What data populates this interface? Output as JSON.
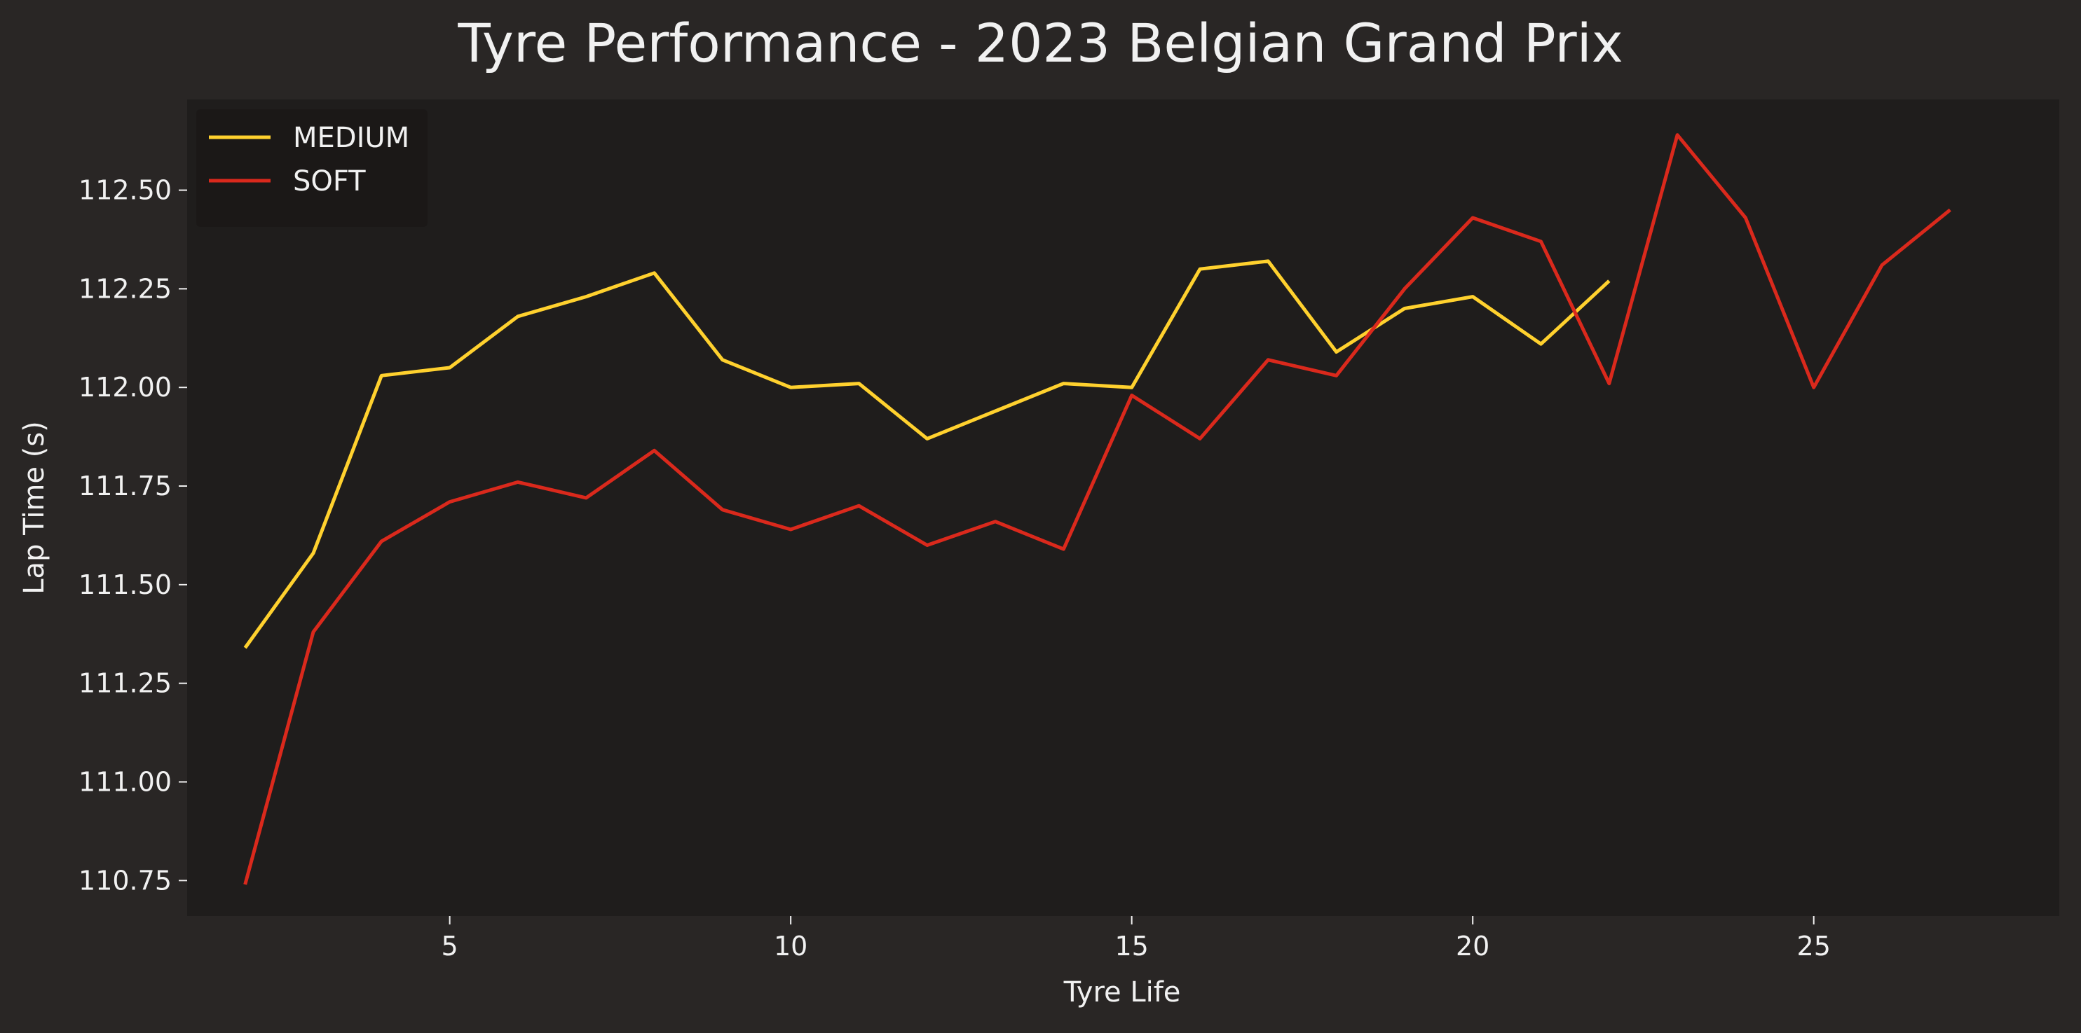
{
  "chart_data": {
    "type": "line",
    "title": "Tyre Performance - 2023 Belgian Grand Prix",
    "xlabel": "Tyre Life",
    "ylabel": "Lap Time (s)",
    "xlim": [
      1.15,
      28.6
    ],
    "ylim": [
      110.66,
      112.73
    ],
    "xticks": [
      5,
      10,
      15,
      20,
      25
    ],
    "xtick_labels": [
      "5",
      "10",
      "15",
      "20",
      "25"
    ],
    "yticks": [
      110.75,
      111.0,
      111.25,
      111.5,
      111.75,
      112.0,
      112.25,
      112.5
    ],
    "ytick_labels": [
      "110.75",
      "111.00",
      "111.25",
      "111.50",
      "111.75",
      "112.00",
      "112.25",
      "112.50"
    ],
    "grid": false,
    "legend_position": "top-left",
    "series": [
      {
        "name": "MEDIUM",
        "color": "#ffd12e",
        "x": [
          2,
          3,
          4,
          5,
          6,
          7,
          8,
          9,
          10,
          11,
          12,
          13,
          14,
          15,
          16,
          17,
          18,
          19,
          20,
          21,
          22
        ],
        "values": [
          111.34,
          111.58,
          112.03,
          112.05,
          112.18,
          112.23,
          112.29,
          112.07,
          112.0,
          112.01,
          111.87,
          111.94,
          112.01,
          112.0,
          112.3,
          112.32,
          112.09,
          112.2,
          112.23,
          112.11,
          112.27
        ]
      },
      {
        "name": "SOFT",
        "color": "#da291c",
        "x": [
          2,
          3,
          4,
          5,
          6,
          7,
          8,
          9,
          10,
          11,
          12,
          13,
          14,
          15,
          16,
          17,
          18,
          19,
          20,
          21,
          22,
          23,
          24,
          25,
          26,
          27
        ],
        "values": [
          110.74,
          111.38,
          111.61,
          111.71,
          111.76,
          111.72,
          111.84,
          111.69,
          111.64,
          111.7,
          111.6,
          111.66,
          111.59,
          111.98,
          111.87,
          112.07,
          112.03,
          112.25,
          112.43,
          112.37,
          112.01,
          112.64,
          112.43,
          112.0,
          112.31,
          112.45
        ]
      }
    ]
  },
  "colors": {
    "figure_background": "#292625",
    "plot_background": "#1f1d1c",
    "text": "#f1f1f1",
    "legend_background": "#1a1817"
  }
}
